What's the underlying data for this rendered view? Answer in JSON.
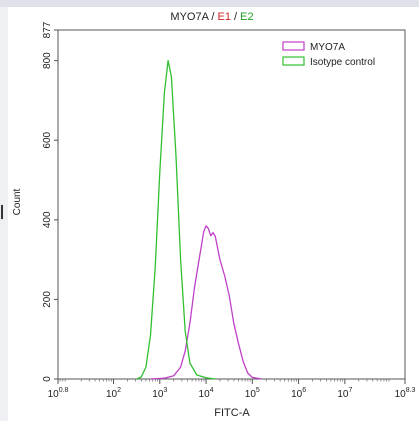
{
  "chart_data": {
    "type": "histogram",
    "title": {
      "parts": [
        {
          "text": "MYO7A",
          "color": "#222222"
        },
        {
          "text": " / ",
          "color": "#222222"
        },
        {
          "text": "E1",
          "color": "#cc2222"
        },
        {
          "text": " / ",
          "color": "#222222"
        },
        {
          "text": "E2",
          "color": "#22a022"
        }
      ]
    },
    "xlabel": "FITC-A",
    "ylabel": "Count",
    "x_scale": "log",
    "xlim": [
      0.8,
      8.3
    ],
    "ylim": [
      0,
      877
    ],
    "x_ticks": [
      {
        "exp": 0.8,
        "base": "10",
        "sup": "0.8"
      },
      {
        "exp": 2,
        "base": "10",
        "sup": "2"
      },
      {
        "exp": 3,
        "base": "10",
        "sup": "3"
      },
      {
        "exp": 4,
        "base": "10",
        "sup": "4"
      },
      {
        "exp": 5,
        "base": "10",
        "sup": "5"
      },
      {
        "exp": 6,
        "base": "10",
        "sup": "6"
      },
      {
        "exp": 7,
        "base": "10",
        "sup": "7"
      },
      {
        "exp": 8.3,
        "base": "10",
        "sup": "8.3"
      }
    ],
    "y_ticks": [
      0,
      200,
      400,
      600,
      800,
      877
    ],
    "legend_position": "top-right",
    "series": [
      {
        "name": "MYO7A",
        "color": "#c040c8",
        "points": [
          [
            2.8,
            0
          ],
          [
            3.1,
            2
          ],
          [
            3.3,
            8
          ],
          [
            3.45,
            30
          ],
          [
            3.55,
            70
          ],
          [
            3.65,
            140
          ],
          [
            3.75,
            230
          ],
          [
            3.85,
            300
          ],
          [
            3.95,
            370
          ],
          [
            4.0,
            385
          ],
          [
            4.05,
            378
          ],
          [
            4.1,
            360
          ],
          [
            4.15,
            368
          ],
          [
            4.2,
            358
          ],
          [
            4.3,
            300
          ],
          [
            4.4,
            260
          ],
          [
            4.5,
            210
          ],
          [
            4.6,
            140
          ],
          [
            4.7,
            90
          ],
          [
            4.8,
            45
          ],
          [
            4.9,
            15
          ],
          [
            5.0,
            4
          ],
          [
            5.2,
            0
          ]
        ]
      },
      {
        "name": "Isotype control",
        "color": "#30c030",
        "points": [
          [
            2.5,
            0
          ],
          [
            2.6,
            5
          ],
          [
            2.7,
            30
          ],
          [
            2.8,
            110
          ],
          [
            2.9,
            280
          ],
          [
            3.0,
            520
          ],
          [
            3.1,
            720
          ],
          [
            3.18,
            800
          ],
          [
            3.25,
            760
          ],
          [
            3.35,
            560
          ],
          [
            3.45,
            300
          ],
          [
            3.55,
            120
          ],
          [
            3.65,
            40
          ],
          [
            3.8,
            10
          ],
          [
            4.0,
            3
          ],
          [
            4.2,
            0
          ]
        ]
      }
    ]
  }
}
